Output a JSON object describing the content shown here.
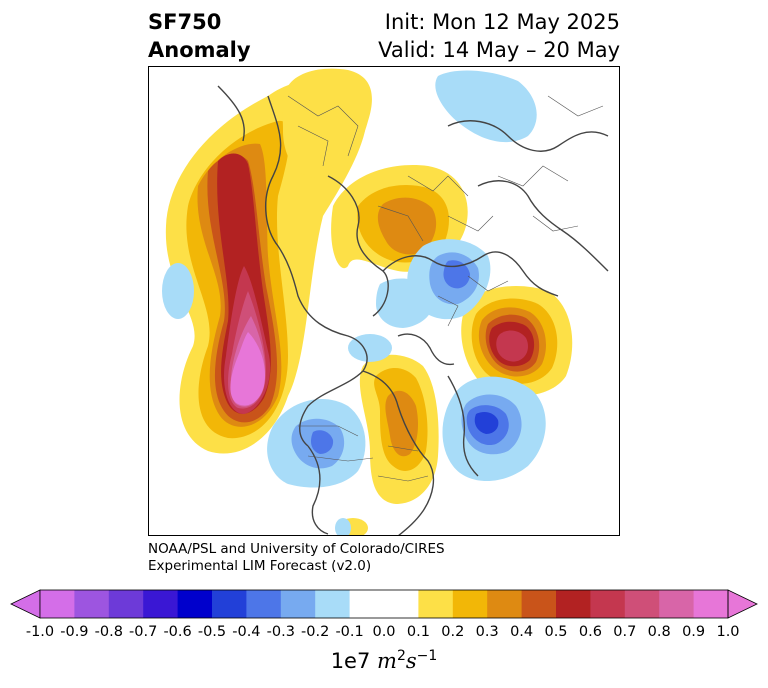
{
  "header": {
    "variable": "SF750",
    "field": "Anomaly",
    "init": "Init: Mon 12 May 2025",
    "valid": "Valid: 14 May – 20 May"
  },
  "credit": {
    "line1": "NOAA/PSL and University of Colorado/CIRES",
    "line2": "Experimental LIM Forecast (v2.0)"
  },
  "colorbar": {
    "ticks": [
      "-1.0",
      "-0.9",
      "-0.8",
      "-0.7",
      "-0.6",
      "-0.5",
      "-0.4",
      "-0.3",
      "-0.2",
      "-0.1",
      "0.0",
      "0.1",
      "0.2",
      "0.3",
      "0.4",
      "0.5",
      "0.6",
      "0.7",
      "0.8",
      "0.9",
      "1.0"
    ],
    "colors": [
      "#d46ee8",
      "#9d55e0",
      "#6d3ad8",
      "#3a17d4",
      "#0000cc",
      "#2240d8",
      "#4d76e8",
      "#77aaf0",
      "#a8dcf8",
      "#ffffff",
      "#ffffff",
      "#fde047",
      "#f2b707",
      "#de8a12",
      "#c9541a",
      "#b22222",
      "#c4374f",
      "#cf4f78",
      "#d865a8",
      "#e776d8"
    ],
    "unit_prefix": "1e7",
    "unit_m": "m",
    "unit_s": "s",
    "exp_m": "2",
    "exp_s": "−1"
  }
}
